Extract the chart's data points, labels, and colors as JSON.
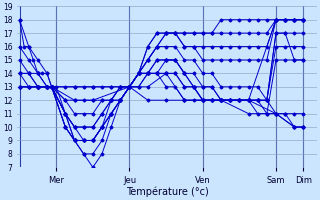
{
  "xlabel": "Température (°c)",
  "ylim": [
    7,
    19
  ],
  "yticks": [
    7,
    8,
    9,
    10,
    11,
    12,
    13,
    14,
    15,
    16,
    17,
    18,
    19
  ],
  "background_color": "#cce5ff",
  "grid_color": "#8899bb",
  "line_color": "#0000cc",
  "day_labels": [
    "Mer",
    "Jeu",
    "Ven",
    "Sam",
    "Dim"
  ],
  "day_tick_x": [
    8,
    24,
    40,
    56,
    62
  ],
  "xlim": [
    -0.5,
    65
  ],
  "lines": [
    {
      "pts": [
        [
          0,
          18
        ],
        [
          1,
          16
        ],
        [
          2,
          16
        ],
        [
          3,
          15
        ],
        [
          4,
          14
        ],
        [
          5,
          14
        ],
        [
          6,
          14
        ],
        [
          7,
          13
        ],
        [
          8,
          13
        ],
        [
          10,
          11
        ],
        [
          12,
          9
        ],
        [
          14,
          8
        ],
        [
          16,
          7
        ],
        [
          18,
          8
        ],
        [
          20,
          10
        ],
        [
          22,
          12
        ],
        [
          24,
          13
        ],
        [
          26,
          14
        ],
        [
          28,
          15
        ],
        [
          30,
          16
        ],
        [
          32,
          17
        ],
        [
          34,
          17
        ],
        [
          36,
          17
        ],
        [
          38,
          17
        ],
        [
          40,
          17
        ],
        [
          42,
          17
        ],
        [
          44,
          17
        ],
        [
          46,
          17
        ],
        [
          48,
          17
        ],
        [
          50,
          17
        ],
        [
          52,
          17
        ],
        [
          54,
          17
        ],
        [
          56,
          18
        ],
        [
          58,
          18
        ],
        [
          60,
          18
        ],
        [
          62,
          18
        ]
      ]
    },
    {
      "pts": [
        [
          0,
          18
        ],
        [
          2,
          16
        ],
        [
          4,
          15
        ],
        [
          6,
          14
        ],
        [
          7,
          13
        ],
        [
          10,
          11
        ],
        [
          12,
          9
        ],
        [
          14,
          8
        ],
        [
          16,
          8
        ],
        [
          18,
          9
        ],
        [
          20,
          11
        ],
        [
          22,
          12
        ],
        [
          24,
          13
        ],
        [
          26,
          14
        ],
        [
          28,
          15
        ],
        [
          30,
          16
        ],
        [
          32,
          17
        ],
        [
          34,
          17
        ],
        [
          36,
          16
        ],
        [
          38,
          16
        ],
        [
          40,
          16
        ],
        [
          42,
          16
        ],
        [
          44,
          16
        ],
        [
          46,
          16
        ],
        [
          48,
          16
        ],
        [
          50,
          16
        ],
        [
          52,
          16
        ],
        [
          54,
          16
        ],
        [
          56,
          18
        ],
        [
          58,
          18
        ],
        [
          60,
          18
        ],
        [
          62,
          18
        ]
      ]
    },
    {
      "pts": [
        [
          0,
          16
        ],
        [
          2,
          15
        ],
        [
          4,
          14
        ],
        [
          6,
          13
        ],
        [
          7,
          13
        ],
        [
          10,
          10
        ],
        [
          12,
          9
        ],
        [
          14,
          9
        ],
        [
          16,
          9
        ],
        [
          18,
          10
        ],
        [
          20,
          11
        ],
        [
          22,
          12
        ],
        [
          24,
          13
        ],
        [
          26,
          14
        ],
        [
          28,
          16
        ],
        [
          30,
          17
        ],
        [
          32,
          17
        ],
        [
          34,
          17
        ],
        [
          36,
          16
        ],
        [
          38,
          16
        ],
        [
          40,
          15
        ],
        [
          42,
          15
        ],
        [
          44,
          15
        ],
        [
          46,
          15
        ],
        [
          48,
          15
        ],
        [
          50,
          15
        ],
        [
          52,
          15
        ],
        [
          54,
          15
        ],
        [
          56,
          18
        ],
        [
          58,
          18
        ],
        [
          60,
          18
        ],
        [
          62,
          18
        ]
      ]
    },
    {
      "pts": [
        [
          0,
          15
        ],
        [
          2,
          14
        ],
        [
          4,
          14
        ],
        [
          6,
          13
        ],
        [
          7,
          13
        ],
        [
          10,
          10
        ],
        [
          12,
          9
        ],
        [
          14,
          9
        ],
        [
          16,
          9
        ],
        [
          18,
          10
        ],
        [
          20,
          11
        ],
        [
          22,
          12
        ],
        [
          24,
          13
        ],
        [
          26,
          14
        ],
        [
          28,
          15
        ],
        [
          30,
          16
        ],
        [
          32,
          16
        ],
        [
          34,
          16
        ],
        [
          36,
          15
        ],
        [
          38,
          15
        ],
        [
          40,
          14
        ],
        [
          42,
          14
        ],
        [
          44,
          13
        ],
        [
          46,
          13
        ],
        [
          48,
          13
        ],
        [
          50,
          13
        ],
        [
          52,
          13
        ],
        [
          54,
          12
        ],
        [
          56,
          17
        ],
        [
          58,
          17
        ],
        [
          60,
          17
        ],
        [
          62,
          17
        ]
      ]
    },
    {
      "pts": [
        [
          0,
          14
        ],
        [
          2,
          14
        ],
        [
          4,
          13
        ],
        [
          6,
          13
        ],
        [
          7,
          13
        ],
        [
          10,
          10
        ],
        [
          12,
          9
        ],
        [
          14,
          9
        ],
        [
          16,
          9
        ],
        [
          18,
          10
        ],
        [
          20,
          11
        ],
        [
          22,
          12
        ],
        [
          24,
          13
        ],
        [
          26,
          14
        ],
        [
          28,
          14
        ],
        [
          30,
          15
        ],
        [
          32,
          15
        ],
        [
          34,
          15
        ],
        [
          36,
          14
        ],
        [
          38,
          14
        ],
        [
          40,
          13
        ],
        [
          42,
          13
        ],
        [
          44,
          12
        ],
        [
          46,
          12
        ],
        [
          48,
          12
        ],
        [
          50,
          12
        ],
        [
          52,
          12
        ],
        [
          54,
          12
        ],
        [
          56,
          17
        ],
        [
          58,
          17
        ],
        [
          60,
          15
        ],
        [
          62,
          15
        ]
      ]
    },
    {
      "pts": [
        [
          0,
          14
        ],
        [
          2,
          14
        ],
        [
          4,
          13
        ],
        [
          6,
          13
        ],
        [
          7,
          13
        ],
        [
          10,
          11
        ],
        [
          12,
          10
        ],
        [
          14,
          9
        ],
        [
          16,
          9
        ],
        [
          18,
          10
        ],
        [
          20,
          12
        ],
        [
          22,
          12
        ],
        [
          24,
          13
        ],
        [
          26,
          14
        ],
        [
          28,
          14
        ],
        [
          30,
          15
        ],
        [
          32,
          15
        ],
        [
          34,
          15
        ],
        [
          36,
          14
        ],
        [
          38,
          13
        ],
        [
          40,
          12
        ],
        [
          42,
          12
        ],
        [
          44,
          12
        ],
        [
          46,
          12
        ],
        [
          48,
          12
        ],
        [
          50,
          12
        ],
        [
          52,
          12
        ],
        [
          54,
          12
        ],
        [
          56,
          16
        ],
        [
          58,
          16
        ],
        [
          60,
          16
        ],
        [
          62,
          16
        ]
      ]
    },
    {
      "pts": [
        [
          0,
          14
        ],
        [
          2,
          13
        ],
        [
          4,
          13
        ],
        [
          6,
          13
        ],
        [
          7,
          13
        ],
        [
          10,
          11
        ],
        [
          12,
          10
        ],
        [
          14,
          10
        ],
        [
          16,
          10
        ],
        [
          18,
          11
        ],
        [
          20,
          12
        ],
        [
          22,
          13
        ],
        [
          24,
          13
        ],
        [
          26,
          14
        ],
        [
          28,
          14
        ],
        [
          30,
          14
        ],
        [
          32,
          15
        ],
        [
          34,
          15
        ],
        [
          36,
          14
        ],
        [
          38,
          13
        ],
        [
          40,
          12
        ],
        [
          42,
          12
        ],
        [
          44,
          12
        ],
        [
          46,
          12
        ],
        [
          48,
          12
        ],
        [
          50,
          12
        ],
        [
          52,
          11
        ],
        [
          54,
          11
        ],
        [
          56,
          15
        ],
        [
          58,
          15
        ],
        [
          60,
          15
        ],
        [
          62,
          15
        ]
      ]
    },
    {
      "pts": [
        [
          0,
          13
        ],
        [
          2,
          13
        ],
        [
          4,
          13
        ],
        [
          6,
          13
        ],
        [
          7,
          13
        ],
        [
          10,
          11
        ],
        [
          12,
          10
        ],
        [
          14,
          10
        ],
        [
          16,
          10
        ],
        [
          18,
          11
        ],
        [
          20,
          12
        ],
        [
          22,
          13
        ],
        [
          24,
          13
        ],
        [
          26,
          13
        ],
        [
          28,
          14
        ],
        [
          30,
          14
        ],
        [
          32,
          14
        ],
        [
          34,
          14
        ],
        [
          36,
          13
        ],
        [
          38,
          13
        ],
        [
          40,
          12
        ],
        [
          42,
          12
        ],
        [
          44,
          12
        ],
        [
          46,
          12
        ],
        [
          48,
          12
        ],
        [
          50,
          12
        ],
        [
          52,
          12
        ],
        [
          54,
          12
        ],
        [
          56,
          11
        ],
        [
          58,
          11
        ],
        [
          60,
          10
        ],
        [
          62,
          10
        ]
      ]
    },
    {
      "pts": [
        [
          0,
          13
        ],
        [
          2,
          13
        ],
        [
          4,
          13
        ],
        [
          6,
          13
        ],
        [
          7,
          13
        ],
        [
          10,
          12
        ],
        [
          12,
          11
        ],
        [
          14,
          11
        ],
        [
          16,
          11
        ],
        [
          18,
          12
        ],
        [
          20,
          12
        ],
        [
          22,
          13
        ],
        [
          24,
          13
        ],
        [
          26,
          13
        ],
        [
          28,
          14
        ],
        [
          30,
          14
        ],
        [
          32,
          14
        ],
        [
          34,
          14
        ],
        [
          36,
          13
        ],
        [
          38,
          13
        ],
        [
          40,
          13
        ],
        [
          42,
          13
        ],
        [
          44,
          12
        ],
        [
          46,
          12
        ],
        [
          48,
          12
        ],
        [
          50,
          12
        ],
        [
          52,
          12
        ],
        [
          54,
          11
        ],
        [
          56,
          11
        ],
        [
          58,
          11
        ],
        [
          60,
          11
        ],
        [
          62,
          11
        ]
      ]
    },
    {
      "pts": [
        [
          0,
          13
        ],
        [
          4,
          13
        ],
        [
          7,
          13
        ],
        [
          12,
          12
        ],
        [
          16,
          12
        ],
        [
          24,
          13
        ],
        [
          28,
          13
        ],
        [
          32,
          14
        ],
        [
          36,
          12
        ],
        [
          40,
          12
        ],
        [
          44,
          12
        ],
        [
          50,
          11
        ],
        [
          56,
          11
        ],
        [
          60,
          10
        ],
        [
          62,
          10
        ]
      ]
    },
    {
      "pts": [
        [
          0,
          13
        ],
        [
          4,
          13
        ],
        [
          7,
          13
        ],
        [
          12,
          13
        ],
        [
          16,
          13
        ],
        [
          20,
          13
        ],
        [
          24,
          13
        ],
        [
          28,
          12
        ],
        [
          32,
          12
        ],
        [
          36,
          12
        ],
        [
          40,
          12
        ],
        [
          44,
          12
        ],
        [
          50,
          12
        ],
        [
          56,
          11
        ],
        [
          60,
          10
        ],
        [
          62,
          10
        ]
      ]
    },
    {
      "pts": [
        [
          7,
          13
        ],
        [
          10,
          12
        ],
        [
          12,
          12
        ],
        [
          14,
          12
        ],
        [
          16,
          12
        ],
        [
          18,
          12
        ],
        [
          20,
          12
        ],
        [
          22,
          12
        ],
        [
          24,
          13
        ],
        [
          26,
          14
        ],
        [
          28,
          14
        ],
        [
          30,
          14
        ],
        [
          32,
          13
        ],
        [
          34,
          13
        ],
        [
          36,
          12
        ],
        [
          38,
          12
        ],
        [
          40,
          12
        ],
        [
          42,
          12
        ],
        [
          44,
          12
        ],
        [
          50,
          12
        ],
        [
          56,
          18
        ],
        [
          58,
          18
        ],
        [
          60,
          18
        ],
        [
          62,
          18
        ]
      ]
    },
    {
      "pts": [
        [
          7,
          13
        ],
        [
          10,
          13
        ],
        [
          12,
          13
        ],
        [
          14,
          13
        ],
        [
          16,
          13
        ],
        [
          18,
          13
        ],
        [
          20,
          13
        ],
        [
          22,
          13
        ],
        [
          24,
          13
        ],
        [
          26,
          14
        ],
        [
          28,
          16
        ],
        [
          30,
          17
        ],
        [
          32,
          17
        ],
        [
          34,
          17
        ],
        [
          36,
          17
        ],
        [
          38,
          17
        ],
        [
          40,
          17
        ],
        [
          42,
          17
        ],
        [
          44,
          18
        ],
        [
          46,
          18
        ],
        [
          48,
          18
        ],
        [
          50,
          18
        ],
        [
          52,
          18
        ],
        [
          54,
          18
        ],
        [
          56,
          18
        ],
        [
          58,
          18
        ],
        [
          60,
          18
        ],
        [
          62,
          18
        ]
      ]
    }
  ]
}
